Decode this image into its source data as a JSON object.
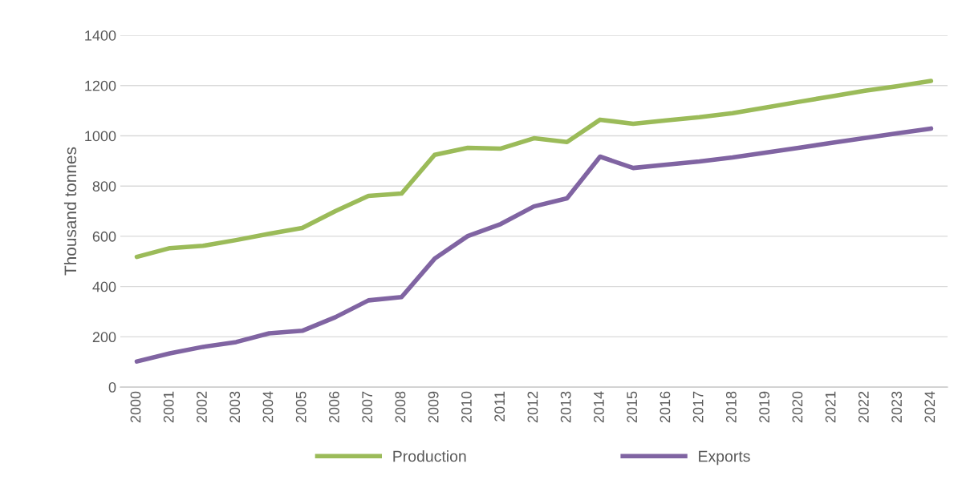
{
  "chart_data": {
    "type": "line",
    "ylabel": "Thousand tonnes",
    "categories": [
      "2000",
      "2001",
      "2002",
      "2003",
      "2004",
      "2005",
      "2006",
      "2007",
      "2008",
      "2009",
      "2010",
      "2011",
      "2012",
      "2013",
      "2014",
      "2015",
      "2016",
      "2017",
      "2018",
      "2019",
      "2020",
      "2021",
      "2022",
      "2023",
      "2024"
    ],
    "series": [
      {
        "name": "Production",
        "color": "#9bbb59",
        "values": [
          518,
          553,
          562,
          585,
          610,
          633,
          700,
          761,
          770,
          924,
          952,
          949,
          990,
          975,
          1064,
          1048,
          1061,
          1074,
          1090,
          1112,
          1135,
          1157,
          1179,
          1198,
          1218
        ]
      },
      {
        "name": "Exports",
        "color": "#8064a2",
        "values": [
          102,
          134,
          160,
          179,
          214,
          224,
          278,
          345,
          358,
          511,
          601,
          649,
          719,
          751,
          917,
          872,
          885,
          898,
          914,
          933,
          952,
          972,
          991,
          1010,
          1029
        ]
      }
    ],
    "ylim": [
      0,
      1400
    ],
    "yticks": [
      0,
      200,
      400,
      600,
      800,
      1000,
      1200,
      1400
    ],
    "grid": "y",
    "legend": "bottom",
    "line_style": "solid",
    "marker": "none"
  }
}
